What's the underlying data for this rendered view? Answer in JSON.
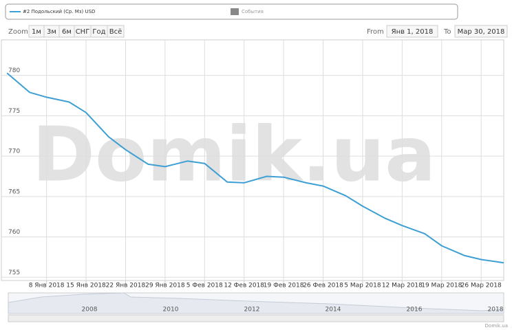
{
  "events_legend": "События",
  "range_selector": {
    "zoom": "Zoom",
    "buttons": [
      "1м",
      "3м",
      "6м",
      "СНГ",
      "Год",
      "Всё"
    ],
    "from_label": "From",
    "from": "Янв 1, 2018",
    "to_label": "To",
    "to": "Мар 30, 2018"
  },
  "watermark": "Domik.ua",
  "credit": "Domik.ua",
  "navigator": {
    "labels": [
      "2008",
      "2010",
      "2012",
      "2014",
      "2016",
      "2018"
    ]
  },
  "chart_data": {
    "type": "line",
    "x": [
      "2018-01-01",
      "2018-01-05",
      "2018-01-08",
      "2018-01-12",
      "2018-01-15",
      "2018-01-19",
      "2018-01-22",
      "2018-01-26",
      "2018-01-29",
      "2018-02-02",
      "2018-02-05",
      "2018-02-09",
      "2018-02-12",
      "2018-02-16",
      "2018-02-19",
      "2018-02-23",
      "2018-02-26",
      "2018-03-02",
      "2018-03-05",
      "2018-03-09",
      "2018-03-12",
      "2018-03-16",
      "2018-03-19",
      "2018-03-23",
      "2018-03-26",
      "2018-03-30"
    ],
    "series": [
      {
        "name": "#2 Подольский (Ср. Мз) USD",
        "color": "#3d9fd3",
        "values": [
          780.3,
          777.9,
          777.3,
          776.7,
          775.4,
          772.4,
          770.8,
          769.0,
          768.7,
          769.4,
          769.1,
          766.8,
          766.7,
          767.5,
          767.4,
          766.7,
          766.3,
          765.1,
          763.8,
          762.3,
          761.4,
          760.4,
          758.9,
          757.7,
          757.2,
          756.8
        ]
      }
    ],
    "xlim": [
      "2017-12-31",
      "2018-03-30"
    ],
    "xticks": [
      {
        "value": "2018-01-08",
        "label": "8 Янв 2018"
      },
      {
        "value": "2018-01-15",
        "label": "15 Янв 2018"
      },
      {
        "value": "2018-01-22",
        "label": "22 Янв 2018"
      },
      {
        "value": "2018-01-29",
        "label": "29 Янв 2018"
      },
      {
        "value": "2018-02-05",
        "label": "5 Фев 2018"
      },
      {
        "value": "2018-02-12",
        "label": "12 Фев 2018"
      },
      {
        "value": "2018-02-19",
        "label": "19 Фев 2018"
      },
      {
        "value": "2018-02-26",
        "label": "26 Фев 2018"
      },
      {
        "value": "2018-03-05",
        "label": "5 Мар 2018"
      },
      {
        "value": "2018-03-12",
        "label": "12 Мар 2018"
      },
      {
        "value": "2018-03-19",
        "label": "19 Мар 2018"
      },
      {
        "value": "2018-03-26",
        "label": "26 Мар 2018"
      }
    ],
    "ylim": [
      754.6,
      784.4
    ],
    "yticks": [
      755,
      760,
      765,
      770,
      775,
      780
    ],
    "grid": true
  }
}
